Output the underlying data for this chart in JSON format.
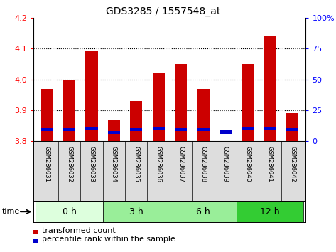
{
  "title": "GDS3285 / 1557548_at",
  "samples": [
    "GSM286031",
    "GSM286032",
    "GSM286033",
    "GSM286034",
    "GSM286035",
    "GSM286036",
    "GSM286037",
    "GSM286038",
    "GSM286039",
    "GSM286040",
    "GSM286041",
    "GSM286042"
  ],
  "red_values": [
    3.97,
    4.0,
    4.09,
    3.87,
    3.93,
    4.02,
    4.05,
    3.97,
    3.8,
    4.05,
    4.14,
    3.89
  ],
  "blue_values": [
    3.833,
    3.833,
    3.838,
    3.823,
    3.833,
    3.838,
    3.833,
    3.833,
    3.823,
    3.838,
    3.838,
    3.833
  ],
  "blue_heights": [
    0.009,
    0.009,
    0.009,
    0.009,
    0.009,
    0.009,
    0.009,
    0.009,
    0.013,
    0.009,
    0.009,
    0.009
  ],
  "bar_base": 3.8,
  "ylim": [
    3.8,
    4.2
  ],
  "yticks_left": [
    3.8,
    3.9,
    4.0,
    4.1,
    4.2
  ],
  "yticks_right_labels": [
    "0",
    "25",
    "50",
    "75",
    "100%"
  ],
  "yticks_right_vals": [
    3.8,
    3.9,
    4.0,
    4.1,
    4.2
  ],
  "time_groups": [
    {
      "label": "0 h",
      "start": 0,
      "end": 3,
      "color": "#ddffdd"
    },
    {
      "label": "3 h",
      "start": 3,
      "end": 6,
      "color": "#99ee99"
    },
    {
      "label": "6 h",
      "start": 6,
      "end": 9,
      "color": "#99ee99"
    },
    {
      "label": "12 h",
      "start": 9,
      "end": 12,
      "color": "#33cc33"
    }
  ],
  "time_label": "time",
  "red_color": "#cc0000",
  "blue_color": "#0000cc",
  "bar_width": 0.55,
  "bg_color": "#dddddd",
  "legend_red": "transformed count",
  "legend_blue": "percentile rank within the sample"
}
